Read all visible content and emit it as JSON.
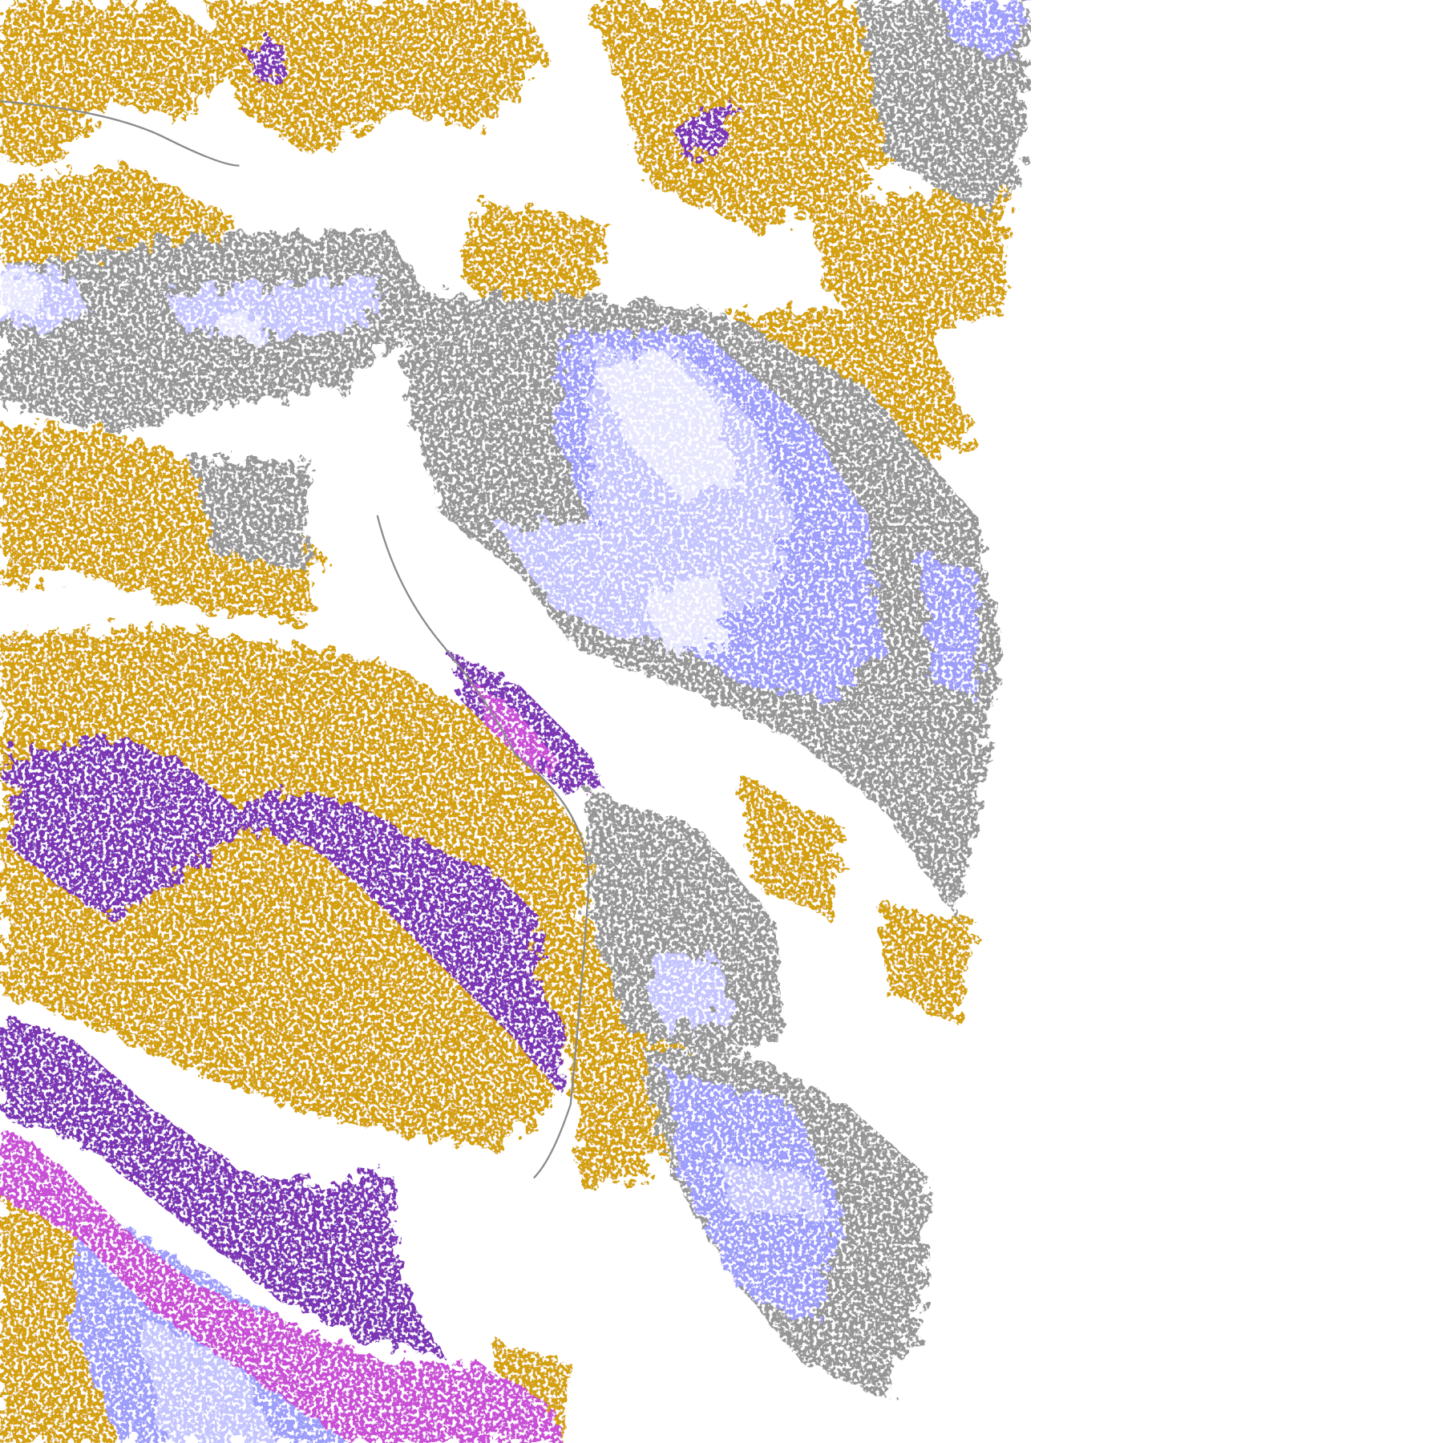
{
  "map": {
    "palette": {
      "background": "#ffffff",
      "gold": "#d4a00c",
      "purple": "#7b35b5",
      "magenta": "#c94fd6",
      "lavender_light": "#e6e6ff",
      "lavender": "#c4c4ff",
      "periwinkle": "#9d9dfb",
      "gray": "#969696",
      "gray_light": "#b8b8b8"
    }
  }
}
